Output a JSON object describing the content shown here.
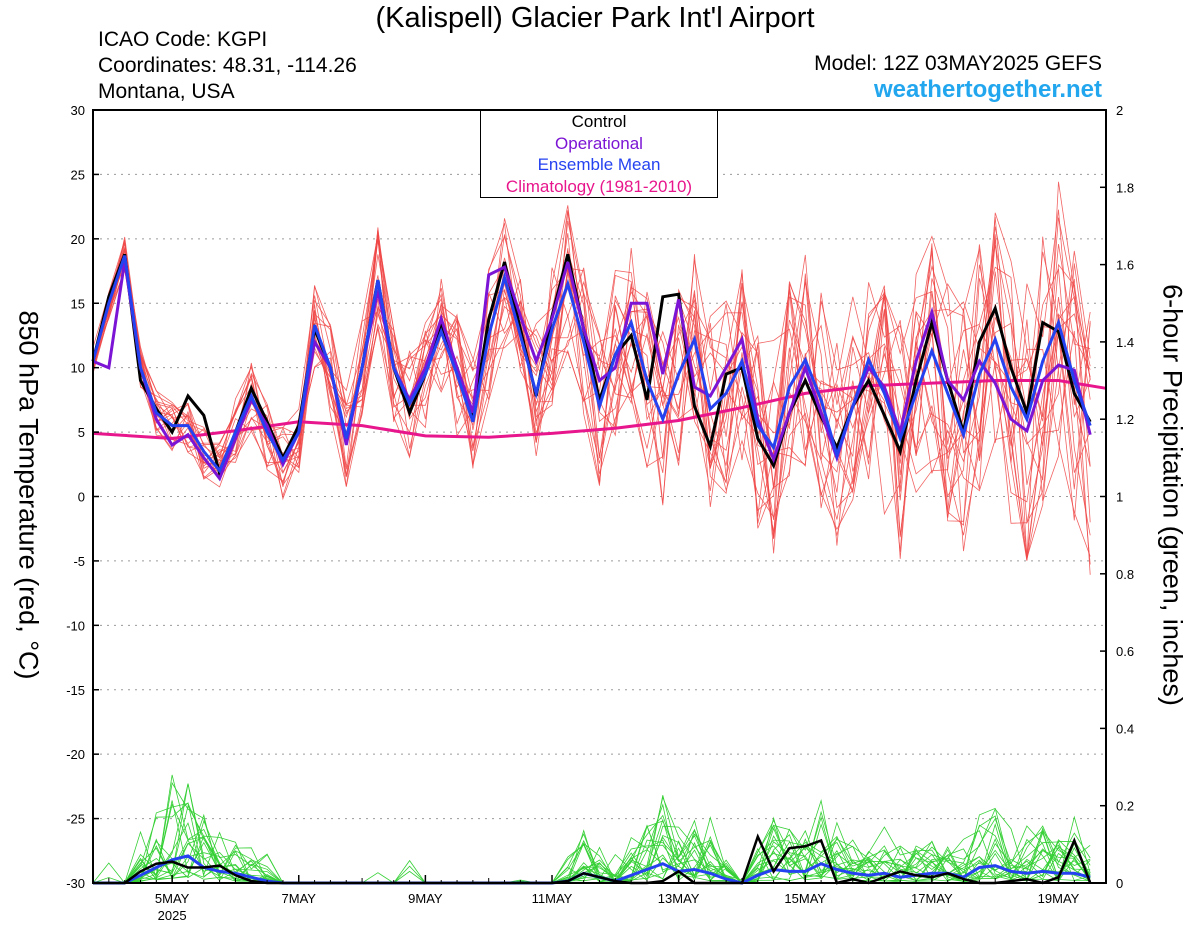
{
  "header": {
    "title": "(Kalispell) Glacier Park Int'l Airport",
    "icao": "ICAO Code: KGPI",
    "coordinates": "Coordinates: 48.31, -114.26",
    "region": "Montana, USA",
    "model": "Model: 12Z 03MAY2025 GEFS",
    "site": "weathertogether.net"
  },
  "colors": {
    "control": "#000000",
    "operational": "#7b14d4",
    "ensemble_mean": "#2542f0",
    "climatology": "#e8168c",
    "temp_members": "#f04848",
    "precip_members": "#35d035",
    "site": "#22a6ee"
  },
  "chart_data": {
    "type": "line",
    "x_unit": "days since 2025-05-03 12Z (6-hour steps)",
    "x_range": [
      0.25,
      16.25
    ],
    "x_ticks": [
      {
        "x": 1.5,
        "label": "5MAY",
        "sublabel": "2025"
      },
      {
        "x": 3.5,
        "label": "7MAY"
      },
      {
        "x": 5.5,
        "label": "9MAY"
      },
      {
        "x": 7.5,
        "label": "11MAY"
      },
      {
        "x": 9.5,
        "label": "13MAY"
      },
      {
        "x": 11.5,
        "label": "15MAY"
      },
      {
        "x": 13.5,
        "label": "17MAY"
      },
      {
        "x": 15.5,
        "label": "19MAY"
      }
    ],
    "ylabel_left": "850 hPa Temperature (red, °C)",
    "ylabel_right": "6-hour Precipitation (green, inches)",
    "ylim_left": [
      -30,
      30
    ],
    "yticks_left": [
      30,
      25,
      20,
      15,
      10,
      5,
      0,
      -5,
      -10,
      -15,
      -20,
      -25,
      -30
    ],
    "ylim_right": [
      0,
      2
    ],
    "yticks_right": [
      "2",
      "1.8",
      "1.6",
      "1.4",
      "1.2",
      "1",
      "0.8",
      "0.6",
      "0.4",
      "0.2",
      "0"
    ],
    "grid": "horizontal dotted",
    "legend": {
      "placement": "top-center",
      "entries": [
        "Control",
        "Operational",
        "Ensemble Mean",
        "Climatology (1981-2010)"
      ]
    },
    "temperature": {
      "control": [
        10.5,
        15.5,
        18.8,
        9,
        6.8,
        5,
        7.8,
        6.3,
        1.8,
        5,
        8.4,
        5.8,
        3,
        5.5,
        13,
        10,
        4.3,
        10,
        16.8,
        10,
        6.5,
        9.5,
        13.3,
        10,
        6.2,
        13.7,
        18.2,
        13,
        7.8,
        14,
        18.8,
        13,
        7.5,
        11,
        12.5,
        7.5,
        15.5,
        15.7,
        7,
        3.9,
        9.5,
        10,
        4.5,
        2.4,
        6.5,
        9,
        6.2,
        3.8,
        7,
        9,
        6.3,
        3.5,
        9,
        13.5,
        9,
        5,
        12,
        14.6,
        10,
        6.5,
        13.5,
        12.8,
        8,
        5.8
      ],
      "operational": [
        10.5,
        10,
        18.3,
        10,
        6,
        4,
        4.8,
        3,
        1.4,
        4.5,
        7.5,
        5.5,
        2.5,
        5,
        12,
        10,
        4,
        10,
        16,
        10,
        7.5,
        10,
        13.8,
        10,
        6.5,
        17.2,
        17.8,
        14,
        10.5,
        13.8,
        18.2,
        13,
        9,
        10,
        15,
        15,
        9.5,
        15.3,
        8.5,
        7.8,
        10,
        12.2,
        6,
        2.9,
        6.5,
        10,
        6.5,
        3,
        7,
        10,
        8.5,
        5,
        10.5,
        14.3,
        9,
        7.5,
        10.5,
        8.8,
        6,
        5.1,
        9,
        10.2,
        9.8,
        4.8
      ],
      "ensemble_mean": [
        10.5,
        15,
        18.7,
        10,
        6.5,
        5.5,
        5.5,
        3.5,
        2,
        5,
        7.8,
        5,
        2.8,
        5,
        13.3,
        10,
        4.5,
        10,
        16.8,
        10,
        7.2,
        9.5,
        12.8,
        9.5,
        5.8,
        12.5,
        17,
        12.5,
        8,
        13,
        16.5,
        12,
        7,
        11,
        13.5,
        9,
        6,
        9.5,
        12.2,
        6.8,
        8,
        10.5,
        5.5,
        3.8,
        8.5,
        10.6,
        7.5,
        3.2,
        7,
        10.6,
        8,
        4.5,
        8,
        11.3,
        8,
        4.8,
        9.5,
        12.2,
        8.5,
        6,
        10.5,
        13.5,
        9,
        5.5
      ],
      "climatology": [
        [
          0.25,
          4.9
        ],
        [
          1.5,
          4.5
        ],
        [
          2.5,
          5.1
        ],
        [
          3.5,
          5.8
        ],
        [
          4.5,
          5.5
        ],
        [
          5.5,
          4.7
        ],
        [
          6.5,
          4.6
        ],
        [
          7.5,
          4.9
        ],
        [
          8.5,
          5.3
        ],
        [
          9.5,
          5.9
        ],
        [
          10.5,
          6.9
        ],
        [
          11.5,
          8
        ],
        [
          12.5,
          8.6
        ],
        [
          13.5,
          8.8
        ],
        [
          14.5,
          9
        ],
        [
          15.5,
          9
        ],
        [
          16.25,
          8.4
        ]
      ],
      "members": 20
    },
    "precipitation": {
      "control": [
        0,
        0,
        0,
        0.03,
        0.05,
        0.055,
        0.04,
        0.04,
        0.045,
        0.02,
        0.005,
        0,
        0,
        0,
        0,
        0,
        0,
        0,
        0,
        0,
        0,
        0,
        0,
        0,
        0,
        0,
        0,
        0,
        0,
        0,
        0.005,
        0.025,
        0.015,
        0.005,
        0,
        0,
        0.005,
        0.03,
        0,
        0,
        0,
        0,
        0.12,
        0.03,
        0.09,
        0.095,
        0.11,
        0,
        0.01,
        0,
        0.015,
        0.03,
        0.02,
        0.015,
        0.025,
        0.01,
        0,
        0,
        0.005,
        0.01,
        0,
        0.015,
        0.11,
        0
      ],
      "ensemble_mean": [
        0,
        0,
        0,
        0.02,
        0.04,
        0.06,
        0.07,
        0.04,
        0.03,
        0.025,
        0.015,
        0.005,
        0,
        0,
        0,
        0,
        0,
        0,
        0,
        0,
        0,
        0,
        0,
        0,
        0,
        0,
        0,
        0,
        0,
        0,
        0.005,
        0.025,
        0.015,
        0.005,
        0.02,
        0.035,
        0.05,
        0.03,
        0.035,
        0.025,
        0.01,
        0,
        0.02,
        0.035,
        0.03,
        0.03,
        0.05,
        0.035,
        0.025,
        0.02,
        0.025,
        0.015,
        0.02,
        0.025,
        0.025,
        0.015,
        0.04,
        0.045,
        0.03,
        0.025,
        0.03,
        0.025,
        0.025,
        0.015
      ],
      "members": 20
    }
  }
}
